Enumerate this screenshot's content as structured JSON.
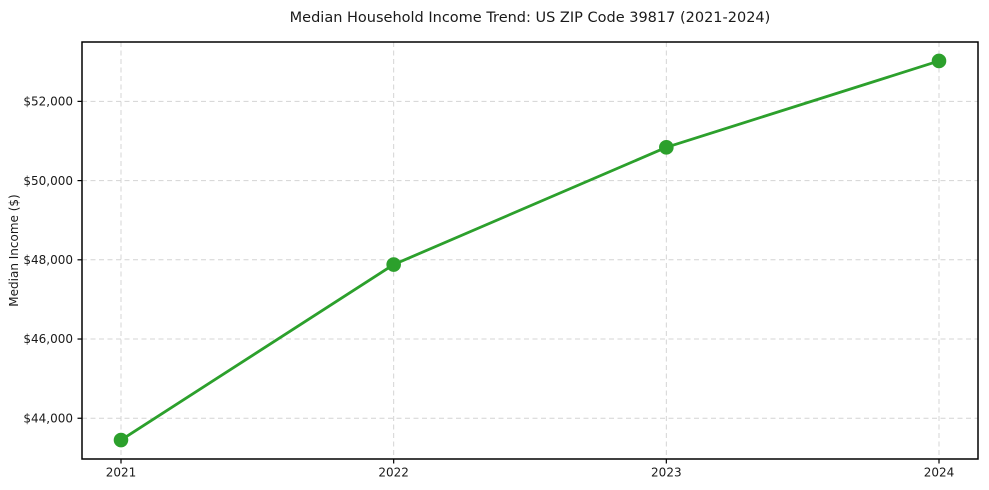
{
  "chart_data": {
    "type": "line",
    "title": "Median Household Income Trend: US ZIP Code 39817 (2021-2024)",
    "xlabel": "",
    "ylabel": "Median Income ($)",
    "x": [
      2021,
      2022,
      2023,
      2024
    ],
    "x_tick_labels": [
      "2021",
      "2022",
      "2023",
      "2024"
    ],
    "series": [
      {
        "name": "Median Household Income",
        "values": [
          43450,
          47880,
          50840,
          53020
        ]
      }
    ],
    "y_ticks": [
      44000,
      46000,
      48000,
      50000,
      52000
    ],
    "y_tick_labels": [
      "$44,000",
      "$46,000",
      "$48,000",
      "$50,000",
      "$52,000"
    ],
    "ylim": [
      42971,
      53499
    ],
    "grid": true,
    "grid_style": "dashed",
    "legend_position": "none",
    "line_color": "#2ca02c",
    "marker": "circle",
    "grid_color": "#d4d4d4",
    "spine_color": "#000000",
    "background_color": "#ffffff"
  }
}
